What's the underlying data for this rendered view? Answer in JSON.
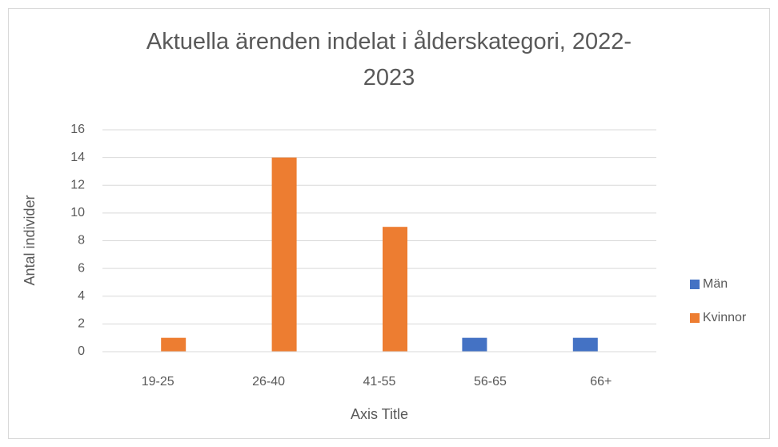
{
  "chart_data": {
    "type": "bar",
    "title": "Aktuella ärenden indelat i ålderskategori, 2022-2023",
    "x_label": "Axis Title",
    "y_label": "Antal individer",
    "categories": [
      "19-25",
      "26-40",
      "41-55",
      "56-65",
      "66+"
    ],
    "series": [
      {
        "name": "Män",
        "color": "#4472c4",
        "values": [
          0,
          0,
          0,
          1,
          1
        ]
      },
      {
        "name": "Kvinnor",
        "color": "#ed7d31",
        "values": [
          1,
          14,
          9,
          0,
          0
        ]
      }
    ],
    "ylim": [
      0,
      16
    ],
    "yticks": [
      0,
      2,
      4,
      6,
      8,
      10,
      12,
      14,
      16
    ],
    "grid": true,
    "legend": "right"
  }
}
